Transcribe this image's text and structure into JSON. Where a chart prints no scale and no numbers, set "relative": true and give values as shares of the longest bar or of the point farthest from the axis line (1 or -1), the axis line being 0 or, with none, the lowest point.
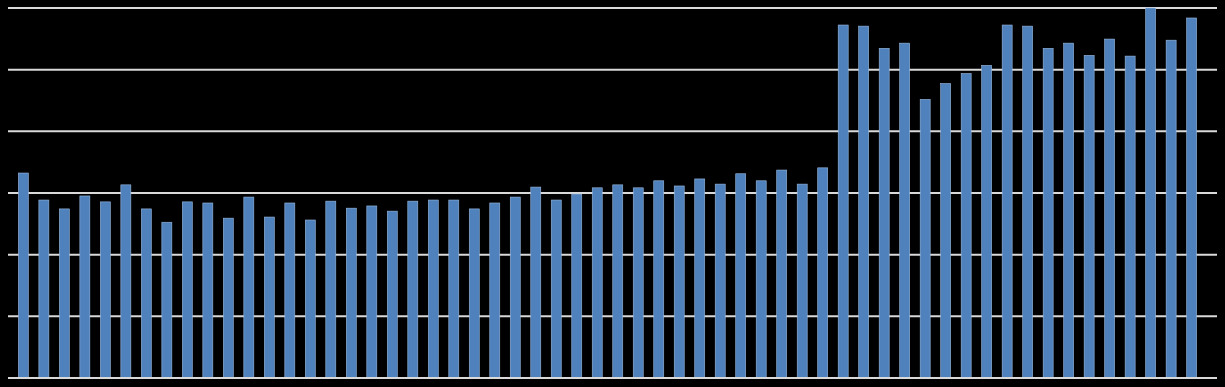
{
  "chart_data": {
    "type": "bar",
    "relative": true,
    "grid": true,
    "color": "#4f81bd",
    "categories": [
      null,
      null,
      null,
      null,
      null,
      null,
      null,
      null,
      null,
      null,
      null,
      null,
      null,
      null,
      null,
      null,
      null,
      null,
      null,
      null,
      null,
      null,
      null,
      null,
      null,
      null,
      null,
      null,
      null,
      null,
      null,
      null,
      null,
      null,
      null,
      null,
      null,
      null,
      null,
      null,
      null,
      null,
      null,
      null,
      null,
      null,
      null,
      null,
      null,
      null,
      null,
      null,
      null,
      null,
      null,
      null,
      null,
      null
    ],
    "values": [
      0.554,
      0.481,
      0.457,
      0.492,
      0.476,
      0.522,
      0.457,
      0.421,
      0.476,
      0.473,
      0.432,
      0.489,
      0.435,
      0.473,
      0.427,
      0.478,
      0.459,
      0.465,
      0.451,
      0.478,
      0.481,
      0.481,
      0.457,
      0.473,
      0.489,
      0.516,
      0.481,
      0.497,
      0.514,
      0.522,
      0.514,
      0.533,
      0.519,
      0.538,
      0.524,
      0.552,
      0.533,
      0.562,
      0.524,
      0.568,
      0.954,
      0.951,
      0.891,
      0.905,
      0.753,
      0.796,
      0.823,
      0.845,
      0.954,
      0.951,
      0.891,
      0.905,
      0.872,
      0.916,
      0.87,
      1,
      0.913,
      0.973
    ]
  }
}
